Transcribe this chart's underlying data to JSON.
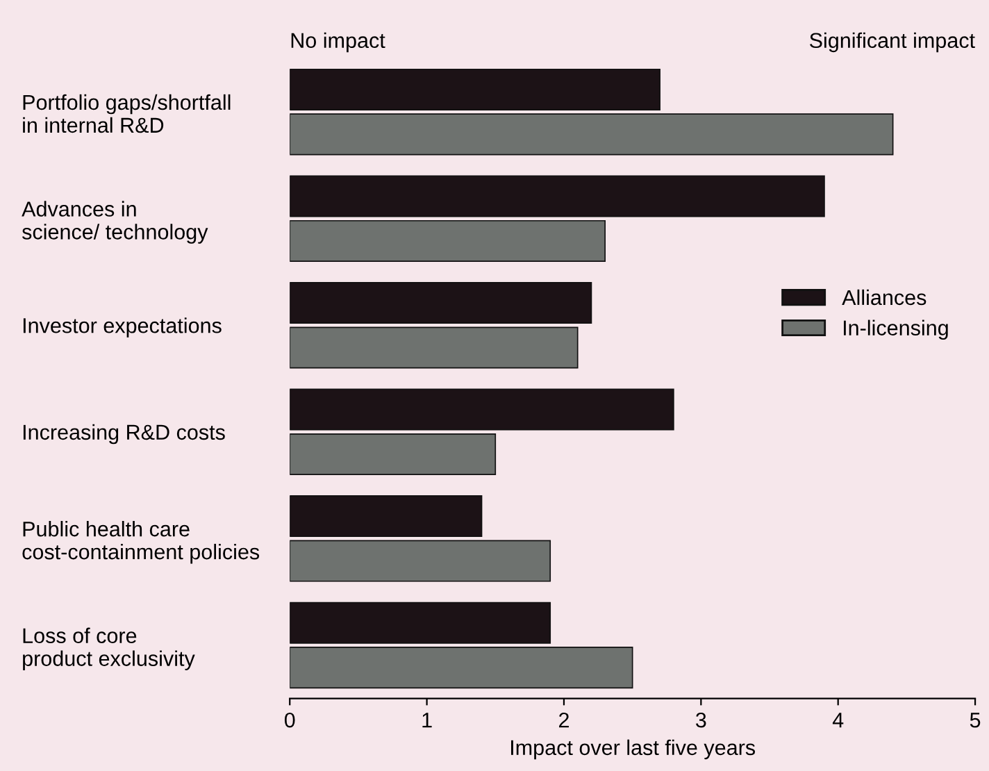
{
  "chart_data": {
    "type": "bar",
    "orientation": "horizontal",
    "categories": [
      "Portfolio gaps/shortfall\nin internal R&D",
      "Advances in\nscience/ technology",
      "Investor expectations",
      "Increasing R&D costs",
      "Public health care\ncost-containment policies",
      "Loss of core\nproduct exclusivity"
    ],
    "series": [
      {
        "name": "Alliances",
        "color": "#1c1216",
        "values": [
          2.7,
          3.9,
          2.2,
          2.8,
          1.4,
          1.9
        ]
      },
      {
        "name": "In-licensing",
        "color": "#6e726f",
        "values": [
          4.4,
          2.3,
          2.1,
          1.5,
          1.9,
          2.5
        ]
      }
    ],
    "xlim": [
      0,
      5
    ],
    "xticks": [
      0,
      1,
      2,
      3,
      4,
      5
    ],
    "xlabel": "Impact over last five years",
    "annotations": [
      "No impact",
      "Significant impact"
    ],
    "legend": "right",
    "grid": false
  }
}
